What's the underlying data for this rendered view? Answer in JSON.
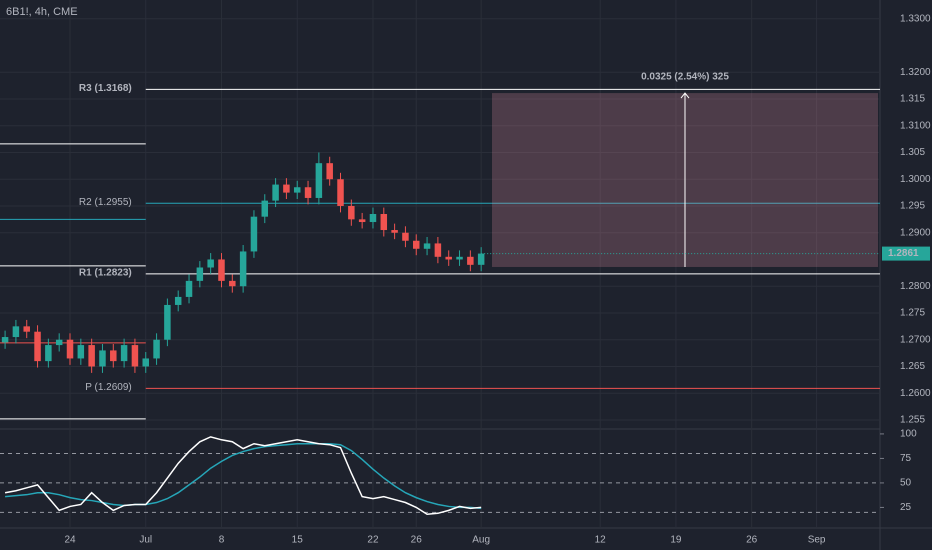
{
  "chart_data": {
    "type": "candlestick",
    "title": "6B1!, 4h, CME",
    "x": [
      -6,
      -5,
      -4,
      -3,
      -2,
      -1,
      0,
      1,
      2,
      3,
      4,
      5,
      6,
      7,
      8,
      9,
      10,
      11,
      12,
      13,
      14,
      15,
      16,
      17,
      18,
      19,
      20,
      21,
      22,
      23,
      24,
      25,
      26,
      27,
      28,
      29,
      30,
      31,
      32,
      33,
      34,
      35,
      36,
      37,
      38
    ],
    "open": [
      1.2695,
      1.2705,
      1.2725,
      1.2715,
      1.266,
      1.269,
      1.27,
      1.2665,
      1.269,
      1.265,
      1.268,
      1.266,
      1.269,
      1.265,
      1.2665,
      1.27,
      1.2765,
      1.278,
      1.281,
      1.2835,
      1.285,
      1.281,
      1.28,
      1.2865,
      1.293,
      1.296,
      1.299,
      1.2975,
      1.2985,
      1.2965,
      1.303,
      1.3,
      1.295,
      1.2925,
      1.292,
      1.2935,
      1.2905,
      1.29,
      1.2885,
      1.287,
      1.288,
      1.2855,
      1.285,
      1.2855,
      1.284
    ],
    "high": [
      1.2717,
      1.2737,
      1.2737,
      1.2727,
      1.2702,
      1.2712,
      1.2712,
      1.2702,
      1.2702,
      1.2692,
      1.2692,
      1.2702,
      1.2702,
      1.2677,
      1.2712,
      1.2777,
      1.2792,
      1.2822,
      1.2847,
      1.2862,
      1.2862,
      1.2822,
      1.2877,
      1.2942,
      1.2972,
      1.3002,
      1.3002,
      1.2997,
      1.2997,
      1.305,
      1.3042,
      1.3012,
      1.2962,
      1.2937,
      1.2947,
      1.2947,
      1.2917,
      1.2912,
      1.2897,
      1.2892,
      1.2892,
      1.2867,
      1.2867,
      1.2867,
      1.2873
    ],
    "low": [
      1.2683,
      1.2693,
      1.2703,
      1.2648,
      1.2648,
      1.2678,
      1.2653,
      1.2653,
      1.2638,
      1.2638,
      1.2648,
      1.2648,
      1.2638,
      1.2638,
      1.2653,
      1.2688,
      1.2753,
      1.2768,
      1.2798,
      1.2823,
      1.2798,
      1.2788,
      1.2788,
      1.2853,
      1.2918,
      1.2948,
      1.2963,
      1.2963,
      1.2953,
      1.2953,
      1.2988,
      1.2938,
      1.2913,
      1.2908,
      1.2908,
      1.2893,
      1.2888,
      1.2873,
      1.2858,
      1.2858,
      1.2843,
      1.2838,
      1.2838,
      1.2828,
      1.2828
    ],
    "close": [
      1.2705,
      1.2725,
      1.2715,
      1.266,
      1.269,
      1.27,
      1.2665,
      1.269,
      1.265,
      1.268,
      1.266,
      1.269,
      1.265,
      1.2665,
      1.27,
      1.2765,
      1.278,
      1.281,
      1.2835,
      1.285,
      1.281,
      1.28,
      1.2865,
      1.293,
      1.296,
      1.299,
      1.2975,
      1.2985,
      1.2965,
      1.303,
      1.3,
      1.295,
      1.2925,
      1.292,
      1.2935,
      1.2905,
      1.29,
      1.2885,
      1.287,
      1.288,
      1.2855,
      1.285,
      1.2855,
      1.284,
      1.2861
    ],
    "up_color": "#26a69a",
    "down_color": "#ef5350",
    "xlim": [
      -6.47,
      74.86
    ],
    "xticks": [
      {
        "value": 0,
        "label": "24"
      },
      {
        "value": 7,
        "label": "Jul"
      },
      {
        "value": 14,
        "label": "8"
      },
      {
        "value": 21,
        "label": "15"
      },
      {
        "value": 28,
        "label": "22"
      },
      {
        "value": 32,
        "label": "26"
      },
      {
        "value": 38,
        "label": "Aug"
      },
      {
        "value": 49,
        "label": "12"
      },
      {
        "value": 56,
        "label": "19"
      },
      {
        "value": 63,
        "label": "26"
      },
      {
        "value": 69,
        "label": "Sep"
      }
    ],
    "ylim": [
      1.2535,
      1.3335
    ],
    "yticks": [
      {
        "value": 1.33,
        "label": "1.3300"
      },
      {
        "value": 1.32,
        "label": "1.3200"
      },
      1.315,
      {
        "value": 1.31,
        "label": "1.3100"
      },
      1.305,
      {
        "value": 1.3,
        "label": "1.3000"
      },
      1.295,
      {
        "value": 1.29,
        "label": "1.2900"
      },
      {
        "value": 1.28,
        "label": "1.2800"
      },
      1.275,
      {
        "value": 1.27,
        "label": "1.2700"
      },
      1.265,
      {
        "value": 1.26,
        "label": "1.2600"
      },
      1.255
    ],
    "last_price": 1.2861,
    "pivots": [
      {
        "label": "R3 (1.3168)",
        "value": 1.3168,
        "color": "#ffffff",
        "previous": 1.3066
      },
      {
        "label": "R2 (1.2955)",
        "value": 1.2955,
        "color": "#26a6b8",
        "previous": 1.2925
      },
      {
        "label": "R1 (1.2823)",
        "value": 1.2823,
        "color": "#ffffff",
        "previous": 1.2838
      },
      {
        "label": "P (1.2609)",
        "value": 1.2609,
        "color": "#ef5350",
        "previous": 1.2694
      }
    ],
    "previous_s1": 1.2552,
    "pivot_start": 7,
    "measure": {
      "label": "0.0325 (2.54%) 325",
      "from": 1.2836,
      "to": 1.3161,
      "start": 39,
      "end": 75
    },
    "rsi": {
      "values": [
        40,
        42,
        45,
        48,
        35,
        22,
        26,
        28,
        40,
        30,
        22,
        27,
        28,
        28,
        40,
        55,
        70,
        82,
        92,
        97,
        94,
        92,
        85,
        90,
        88,
        90,
        92,
        94,
        92,
        90,
        89,
        86,
        60,
        36,
        34,
        36,
        33,
        30,
        25,
        18,
        19,
        22,
        26,
        24,
        25
      ],
      "ma": [
        36,
        37,
        38,
        40,
        40,
        38,
        35,
        33,
        32,
        30,
        28,
        27,
        28,
        28,
        30,
        34,
        40,
        48,
        56,
        65,
        72,
        78,
        82,
        85,
        87,
        88,
        89,
        90,
        90,
        90,
        90,
        89,
        83,
        74,
        64,
        55,
        47,
        40,
        35,
        31,
        28,
        26,
        25,
        25,
        24
      ],
      "color": "#ffffff",
      "ma_color": "#26a6b8",
      "ylim": [
        4,
        104
      ],
      "yticks": [
        100,
        75,
        50,
        25
      ],
      "bands": [
        80,
        50,
        20
      ]
    }
  }
}
